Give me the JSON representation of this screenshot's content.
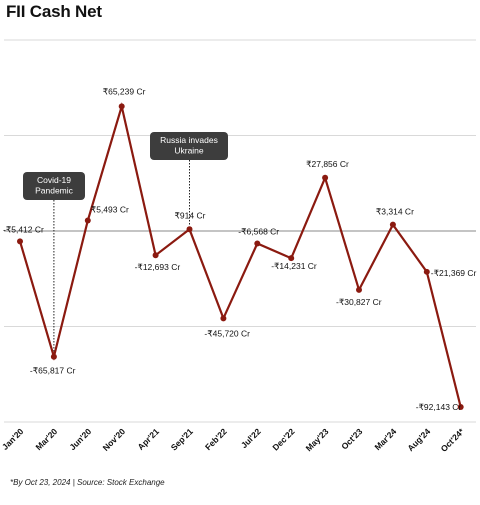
{
  "chart_data": {
    "type": "line",
    "title": "FII Cash Net",
    "footnote": "*By Oct 23, 2024 | Source: Stock Exchange",
    "xlabel": "",
    "ylabel": "",
    "ylim": [
      -100000,
      100000
    ],
    "grid": true,
    "legend": "none",
    "colors": {
      "line": "#8B1A10",
      "marker": "#8B1A10",
      "grid": "#cccccc",
      "annotation_bg": "#3d3d3d"
    },
    "x": [
      "Jan'20",
      "Mar'20",
      "Jun'20",
      "Nov'20",
      "Apr'21",
      "Sep'21",
      "Feb'22",
      "Jul'22",
      "Dec'22",
      "May'23",
      "Oct'23",
      "Mar'24",
      "Aug'24",
      "Oct'24*"
    ],
    "values": [
      -5412,
      -65817,
      5493,
      65239,
      -12693,
      914,
      -45720,
      -6568,
      -14231,
      27856,
      -30827,
      3314,
      -21369,
      -92143
    ],
    "value_labels": [
      "-₹5,412 Cr",
      "-₹65,817 Cr",
      "₹5,493 Cr",
      "₹65,239 Cr",
      "-₹12,693 Cr",
      "₹914 Cr",
      "-₹45,720 Cr",
      "-₹6,568 Cr",
      "-₹14,231 Cr",
      "₹27,856 Cr",
      "-₹30,827 Cr",
      "₹3,314 Cr",
      "-₹21,369 Cr",
      "-₹92,143 Cr"
    ],
    "annotations": [
      {
        "lines": [
          "Covid-19",
          "Pandemic"
        ],
        "index": 1
      },
      {
        "lines": [
          "Russia invades",
          "Ukraine"
        ],
        "index": 5
      }
    ]
  }
}
